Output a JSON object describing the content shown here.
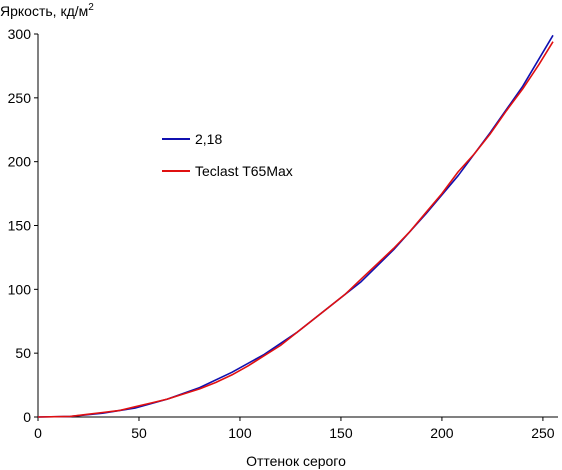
{
  "chart_data": {
    "type": "line",
    "title": "",
    "ylabel": "Яркость, кд/м",
    "ylabel_sup": "2",
    "xlabel": "Оттенок серого",
    "xlim": [
      0,
      255
    ],
    "ylim": [
      0,
      300
    ],
    "x_ticks": [
      "0",
      "50",
      "100",
      "150",
      "200",
      "250"
    ],
    "y_ticks": [
      "0",
      "50",
      "100",
      "150",
      "200",
      "250",
      "300"
    ],
    "grid": false,
    "legend_position": "center-left",
    "series": [
      {
        "name": "2,18",
        "color": "#1010b0",
        "x": [
          0,
          16,
          32,
          48,
          64,
          80,
          96,
          112,
          128,
          144,
          160,
          176,
          192,
          208,
          224,
          240,
          255
        ],
        "y": [
          0,
          0.5,
          3,
          7,
          14,
          23,
          35,
          49,
          66,
          86,
          106,
          131,
          159,
          189,
          223,
          259,
          299
        ]
      },
      {
        "name": "Teclast T65Max",
        "color": "#e01010",
        "x": [
          0,
          16,
          24,
          32,
          40,
          48,
          56,
          64,
          72,
          80,
          88,
          96,
          104,
          112,
          120,
          128,
          136,
          144,
          152,
          160,
          168,
          176,
          184,
          192,
          200,
          208,
          216,
          224,
          232,
          240,
          248,
          255
        ],
        "y": [
          0,
          0.5,
          2,
          3.5,
          5,
          8,
          11,
          14,
          18,
          22,
          27,
          33,
          40,
          48,
          56,
          66,
          76,
          86,
          96,
          108,
          120,
          132,
          145,
          160,
          175,
          192,
          206,
          222,
          240,
          257,
          276,
          294
        ]
      }
    ]
  }
}
